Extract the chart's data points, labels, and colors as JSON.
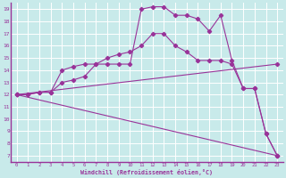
{
  "background_color": "#c8eaea",
  "grid_color": "#b8dada",
  "line_color": "#993399",
  "xlabel": "Windchill (Refroidissement éolien,°C)",
  "xlim": [
    -0.5,
    23.5
  ],
  "ylim": [
    6.5,
    19.5
  ],
  "xticks": [
    0,
    1,
    2,
    3,
    4,
    5,
    6,
    7,
    8,
    9,
    10,
    11,
    12,
    13,
    14,
    15,
    16,
    17,
    18,
    19,
    20,
    21,
    22,
    23
  ],
  "yticks": [
    7,
    8,
    9,
    10,
    11,
    12,
    13,
    14,
    15,
    16,
    17,
    18,
    19
  ],
  "line1_x": [
    0,
    1,
    2,
    3,
    4,
    5,
    6,
    7,
    8,
    9,
    10,
    11,
    12,
    13,
    14,
    15,
    16,
    17,
    18,
    19,
    20,
    21,
    22,
    23
  ],
  "line1_y": [
    12.0,
    12.0,
    12.2,
    12.2,
    14.0,
    14.3,
    14.5,
    14.5,
    14.5,
    14.5,
    14.5,
    19.0,
    19.2,
    19.2,
    18.5,
    18.5,
    18.2,
    17.2,
    18.5,
    14.8,
    12.5,
    12.5,
    8.8,
    7.0
  ],
  "line2_x": [
    0,
    1,
    2,
    3,
    4,
    5,
    6,
    7,
    8,
    9,
    10,
    11,
    12,
    13,
    14,
    15,
    16,
    17,
    18,
    19,
    20,
    21,
    22,
    23
  ],
  "line2_y": [
    12.0,
    12.0,
    12.2,
    12.2,
    13.0,
    13.2,
    13.5,
    14.5,
    15.0,
    15.3,
    15.5,
    16.0,
    17.0,
    17.0,
    16.0,
    15.5,
    14.8,
    14.8,
    14.8,
    14.5,
    12.5,
    12.5,
    8.8,
    7.0
  ],
  "line3_x": [
    0,
    23
  ],
  "line3_y": [
    12.0,
    14.5
  ],
  "line4_x": [
    0,
    23
  ],
  "line4_y": [
    12.0,
    7.0
  ]
}
